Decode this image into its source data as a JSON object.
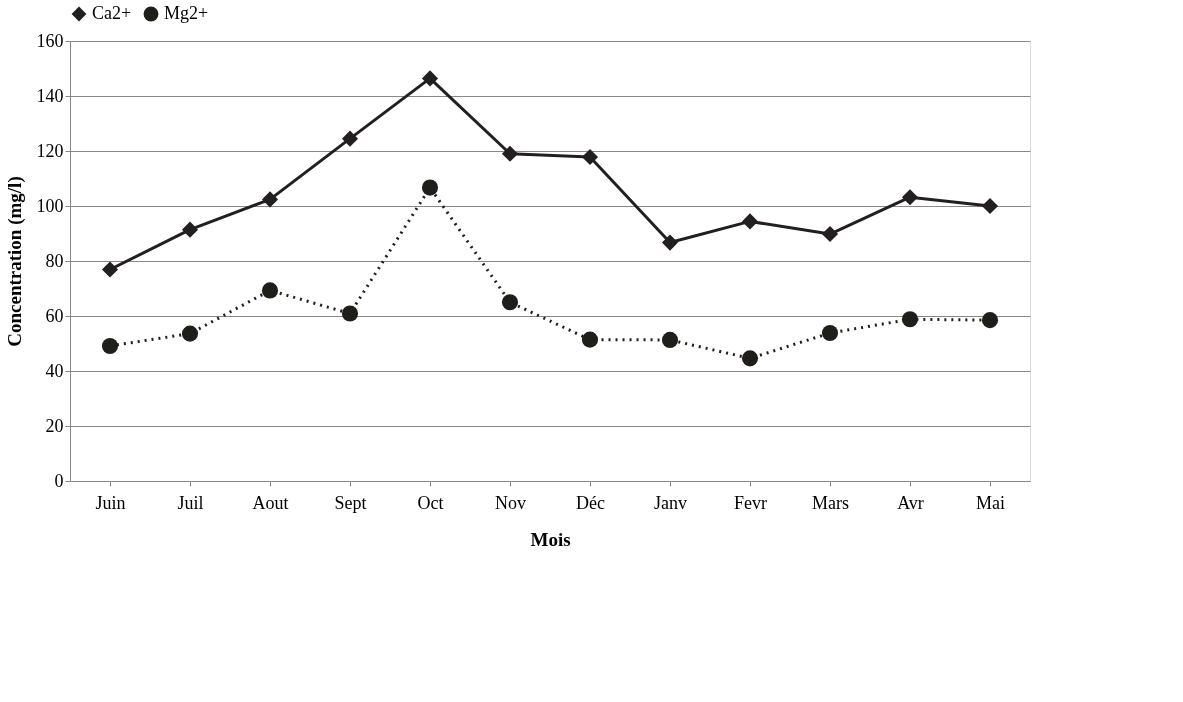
{
  "chart_data": {
    "type": "line",
    "xlabel": "Mois",
    "ylabel": "Concentration (mg/l)",
    "categories": [
      "Juin",
      "Juil",
      "Aout",
      "Sept",
      "Oct",
      "Nov",
      "Déc",
      "Janv",
      "Fevr",
      "Mars",
      "Avr",
      "Mai"
    ],
    "series": [
      {
        "name": "Ca2+",
        "color": "#231f20",
        "marker": "diamond",
        "line_style": "solid",
        "values": [
          76.9,
          91.4,
          102.4,
          124.5,
          146.4,
          119.0,
          117.8,
          86.7,
          94.4,
          89.8,
          103.2,
          100.0
        ]
      },
      {
        "name": "Mg2+",
        "color": "#1f1e1a",
        "marker": "circle",
        "line_style": "dotted",
        "values": [
          49.1,
          53.6,
          69.3,
          60.9,
          106.7,
          65.0,
          51.4,
          51.3,
          44.6,
          53.8,
          58.8,
          58.5
        ]
      }
    ],
    "ylim": [
      0,
      160
    ],
    "yticks": [
      0,
      20,
      40,
      60,
      80,
      100,
      120,
      140,
      160
    ],
    "grid": "y",
    "legend": "top"
  }
}
